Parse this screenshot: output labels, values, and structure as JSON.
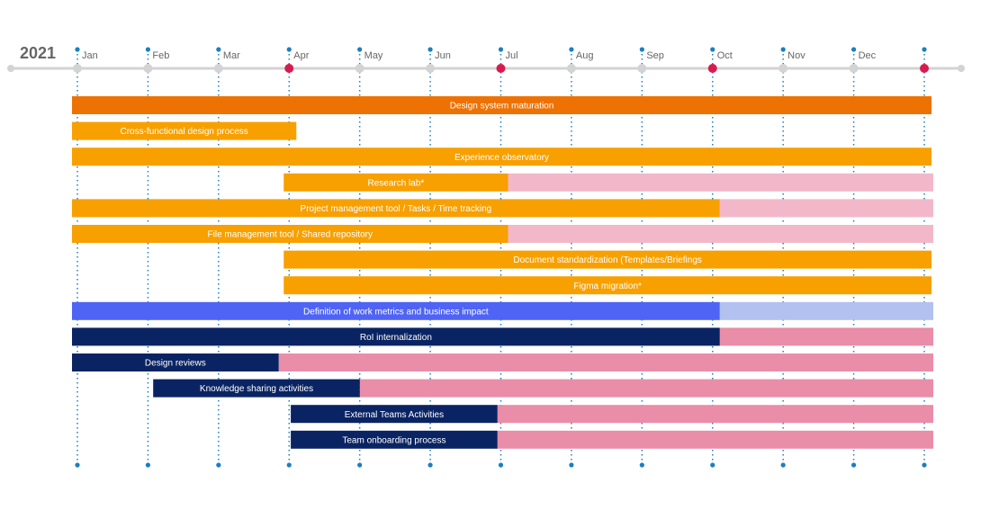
{
  "chart_data": {
    "type": "gantt",
    "title": "2021",
    "categories": [
      "Jan",
      "Feb",
      "Mar",
      "Apr",
      "May",
      "Jun",
      "Jul",
      "Aug",
      "Sep",
      "Oct",
      "Nov",
      "Dec"
    ],
    "xlim": [
      0,
      12
    ],
    "xticks": [
      0,
      1,
      2,
      3,
      4,
      5,
      6,
      7,
      8,
      9,
      10,
      11,
      12
    ],
    "milestones": [
      3,
      6,
      9,
      12
    ],
    "tasks": [
      {
        "name": "Design system maturation",
        "start": 0,
        "end": 12,
        "color": "#ee7203"
      },
      {
        "name": "Cross-functional design process",
        "start": 0,
        "end": 3,
        "color": "#f7a000"
      },
      {
        "name": "Experience observatory",
        "start": 0,
        "end": 12,
        "color": "#f7a000"
      },
      {
        "name": "Research lab*",
        "start": 3,
        "end": 6,
        "extension_end": 12,
        "color": "#f7a000",
        "extension_color": "#f2b8ca"
      },
      {
        "name": "Project management tool / Tasks / Time tracking",
        "start": 0,
        "end": 9,
        "extension_end": 12,
        "color": "#f7a000",
        "extension_color": "#f2b8ca"
      },
      {
        "name": "File management tool / Shared repository",
        "start": 0,
        "end": 6,
        "extension_end": 12,
        "color": "#f7a000",
        "extension_color": "#f2b8ca"
      },
      {
        "name": "Document standardization (Templates/Briefings",
        "start": 3,
        "end": 12,
        "color": "#f7a000"
      },
      {
        "name": "Figma migration*",
        "start": 3,
        "end": 12,
        "color": "#f7a000"
      },
      {
        "name": "Definition of work metrics and business impact",
        "start": 0,
        "end": 9,
        "extension_end": 12,
        "color": "#4f64f5",
        "extension_color": "#b3c1f0"
      },
      {
        "name": "RoI internalization",
        "start": 0,
        "end": 9,
        "extension_end": 12,
        "color": "#0a2463",
        "extension_color": "#e98da8"
      },
      {
        "name": "Design reviews",
        "start": 0,
        "end": 2.75,
        "extension_end": 12,
        "color": "#0a2463",
        "extension_color": "#e98da8"
      },
      {
        "name": "Knowledge sharing activities",
        "start": 1.15,
        "end": 3.9,
        "extension_end": 12,
        "color": "#0a2463",
        "extension_color": "#e98da8"
      },
      {
        "name": "External Teams Activities",
        "start": 3.1,
        "end": 5.85,
        "extension_end": 12,
        "color": "#0a2463",
        "extension_color": "#e98da8"
      },
      {
        "name": "Team onboarding process",
        "start": 3.1,
        "end": 5.85,
        "extension_end": 12,
        "color": "#0a2463",
        "extension_color": "#e98da8"
      }
    ]
  }
}
